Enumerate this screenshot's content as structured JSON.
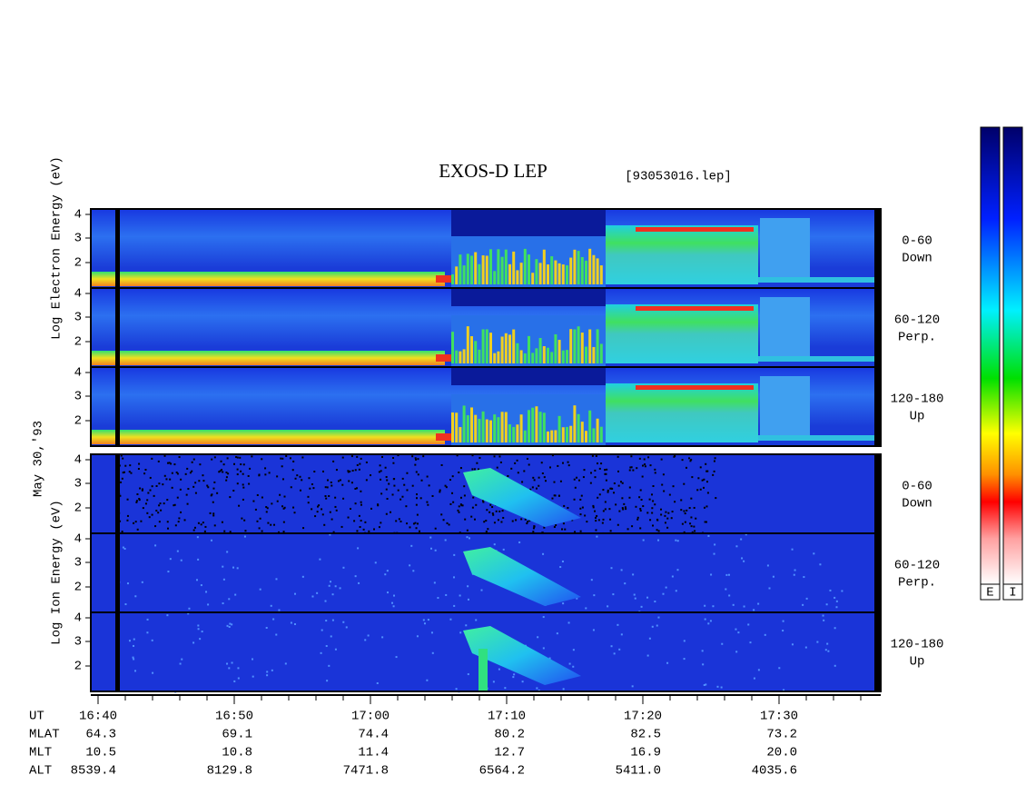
{
  "title": "EXOS-D LEP",
  "file": "[93053016.lep]",
  "date": "May 30,'93",
  "electron_axis_label": "Log Electron Energy (eV)",
  "ion_axis_label": "Log Ion Energy (eV)",
  "yticks": [
    "4",
    "3",
    "2"
  ],
  "panels": [
    {
      "pitch": "0-60",
      "direction": "Down"
    },
    {
      "pitch": "60-120",
      "direction": "Perp."
    },
    {
      "pitch": "120-180",
      "direction": "Up"
    }
  ],
  "colorbars": [
    "E",
    "I"
  ],
  "time_axis": {
    "rows": [
      {
        "label": "UT",
        "values": [
          "16:40",
          "16:50",
          "17:00",
          "17:10",
          "17:20",
          "17:30"
        ]
      },
      {
        "label": "MLAT",
        "values": [
          "64.3",
          "69.1",
          "74.4",
          "80.2",
          "82.5",
          "73.2"
        ]
      },
      {
        "label": "MLT",
        "values": [
          "10.5",
          "10.8",
          "11.4",
          "12.7",
          "16.9",
          "20.0"
        ]
      },
      {
        "label": "ALT",
        "values": [
          "8539.4",
          "8129.8",
          "7471.8",
          "6564.2",
          "5411.0",
          "4035.6"
        ]
      }
    ]
  }
}
